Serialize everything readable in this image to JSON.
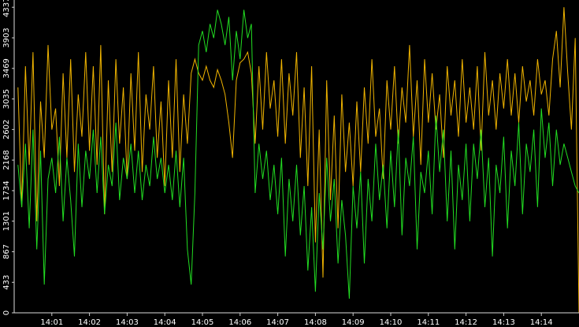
{
  "chart_data": {
    "type": "line",
    "x": [
      0.1,
      0.2,
      0.3,
      0.4,
      0.5,
      0.6,
      0.7,
      0.8,
      0.9,
      1.0,
      1.1,
      1.2,
      1.3,
      1.4,
      1.5,
      1.6,
      1.7,
      1.8,
      1.9,
      2.0,
      2.1,
      2.2,
      2.3,
      2.4,
      2.5,
      2.6,
      2.7,
      2.8,
      2.9,
      3.0,
      3.1,
      3.2,
      3.3,
      3.4,
      3.5,
      3.6,
      3.7,
      3.8,
      3.9,
      4.0,
      4.1,
      4.2,
      4.3,
      4.4,
      4.5,
      4.6,
      4.7,
      4.8,
      4.9,
      5.0,
      5.1,
      5.2,
      5.3,
      5.4,
      5.5,
      5.6,
      5.7,
      5.8,
      5.9,
      6.0,
      6.1,
      6.2,
      6.3,
      6.4,
      6.5,
      6.6,
      6.7,
      6.8,
      6.9,
      7.0,
      7.1,
      7.2,
      7.3,
      7.4,
      7.5,
      7.6,
      7.7,
      7.8,
      7.9,
      8.0,
      8.1,
      8.2,
      8.3,
      8.4,
      8.5,
      8.6,
      8.7,
      8.8,
      8.9,
      9.0,
      9.1,
      9.2,
      9.3,
      9.4,
      9.5,
      9.6,
      9.7,
      9.8,
      9.9,
      10.0,
      10.1,
      10.2,
      10.3,
      10.4,
      10.5,
      10.6,
      10.7,
      10.8,
      10.9,
      11.0,
      11.1,
      11.2,
      11.3,
      11.4,
      11.5,
      11.6,
      11.7,
      11.8,
      11.9,
      12.0,
      12.1,
      12.2,
      12.3,
      12.4,
      12.5,
      12.6,
      12.7,
      12.8,
      12.9,
      13.0,
      13.1,
      13.2,
      13.3,
      13.4,
      13.5,
      13.6,
      13.7,
      13.8,
      13.9,
      14.0,
      14.1,
      14.2,
      14.3,
      14.4,
      14.5,
      14.6,
      14.7,
      14.8,
      14.9,
      15.0
    ],
    "series": [
      {
        "color": "#f0b400",
        "values": [
          3200,
          1500,
          3500,
          2100,
          3700,
          1300,
          3000,
          2200,
          3800,
          2600,
          2900,
          1800,
          3400,
          2200,
          3600,
          2000,
          3100,
          2500,
          3700,
          2300,
          3500,
          2100,
          3800,
          1400,
          3300,
          2000,
          3600,
          2400,
          3200,
          1900,
          3400,
          2300,
          3700,
          2000,
          3100,
          2600,
          3500,
          2200,
          3000,
          1800,
          3300,
          2200,
          3600,
          2000,
          3100,
          2400,
          3400,
          3600,
          3400,
          3300,
          3500,
          3300,
          3200,
          3450,
          3300,
          3100,
          2700,
          2200,
          3300,
          3550,
          3600,
          3700,
          3400,
          2400,
          3500,
          2600,
          3700,
          2900,
          3300,
          2500,
          3600,
          2400,
          3400,
          2800,
          3700,
          2200,
          3200,
          1800,
          3500,
          1000,
          2600,
          500,
          3300,
          1600,
          2800,
          1200,
          3100,
          2000,
          2700,
          1800,
          3000,
          2000,
          3200,
          2400,
          3600,
          2500,
          2900,
          1900,
          3300,
          2600,
          3500,
          2400,
          3200,
          2700,
          3800,
          2500,
          3300,
          2100,
          3600,
          2700,
          3400,
          2600,
          3100,
          2200,
          3500,
          2800,
          3300,
          2500,
          3600,
          2700,
          3200,
          2600,
          3500,
          2300,
          3700,
          2800,
          3300,
          2600,
          3400,
          2900,
          3600,
          2800,
          3400,
          2700,
          3500,
          3000,
          3300,
          2800,
          3600,
          3100,
          3300,
          2800,
          3600,
          4000,
          3200,
          4337,
          3400,
          2600,
          3900,
          0
        ]
      },
      {
        "color": "#22dd22",
        "values": [
          2100,
          1500,
          2400,
          1200,
          2600,
          900,
          2300,
          400,
          1900,
          2200,
          1700,
          2500,
          1300,
          2200,
          1600,
          800,
          2400,
          1500,
          2300,
          1900,
          2600,
          1700,
          2500,
          1400,
          2100,
          1800,
          2700,
          1600,
          2200,
          1900,
          2400,
          1700,
          2300,
          1600,
          2100,
          1800,
          2500,
          1900,
          2200,
          1700,
          2100,
          1600,
          2300,
          1500,
          2200,
          900,
          400,
          1700,
          3800,
          4000,
          3700,
          4100,
          3900,
          4300,
          4100,
          3800,
          4200,
          3300,
          4000,
          3600,
          4300,
          3900,
          4100,
          1700,
          2400,
          1900,
          2300,
          1600,
          2100,
          1400,
          2200,
          800,
          1900,
          1300,
          2100,
          1100,
          1800,
          600,
          1500,
          300,
          1700,
          900,
          2200,
          1300,
          1900,
          700,
          1600,
          1100,
          200,
          1800,
          1200,
          2000,
          700,
          1900,
          1300,
          2400,
          1600,
          2100,
          1200,
          2300,
          1500,
          2600,
          1100,
          2200,
          1800,
          2500,
          900,
          2000,
          1700,
          2300,
          1400,
          2800,
          2000,
          2600,
          1300,
          2300,
          900,
          2100,
          1600,
          2400,
          1300,
          2400,
          1900,
          2600,
          1500,
          2200,
          800,
          2100,
          1700,
          2500,
          1200,
          2300,
          1800,
          2700,
          1400,
          2400,
          2000,
          2600,
          1500,
          2900,
          2200,
          2700,
          1800,
          2600,
          2100,
          2400,
          2200,
          2000,
          1800,
          1700
        ]
      }
    ],
    "xlim": [
      0,
      15
    ],
    "xticks": [
      {
        "value": 1,
        "label": "14:01"
      },
      {
        "value": 2,
        "label": "14:02"
      },
      {
        "value": 3,
        "label": "14:03"
      },
      {
        "value": 4,
        "label": "14:04"
      },
      {
        "value": 5,
        "label": "14:05"
      },
      {
        "value": 6,
        "label": "14:06"
      },
      {
        "value": 7,
        "label": "14:07"
      },
      {
        "value": 8,
        "label": "14:08"
      },
      {
        "value": 9,
        "label": "14:09"
      },
      {
        "value": 10,
        "label": "14:10"
      },
      {
        "value": 11,
        "label": "14:11"
      },
      {
        "value": 12,
        "label": "14:12"
      },
      {
        "value": 13,
        "label": "14:13"
      },
      {
        "value": 14,
        "label": "14:14"
      }
    ],
    "ylim": [
      0,
      4440
    ],
    "yticks": [
      0,
      433,
      867,
      1301,
      1734,
      2168,
      2602,
      3035,
      3469,
      3903,
      4337
    ]
  }
}
